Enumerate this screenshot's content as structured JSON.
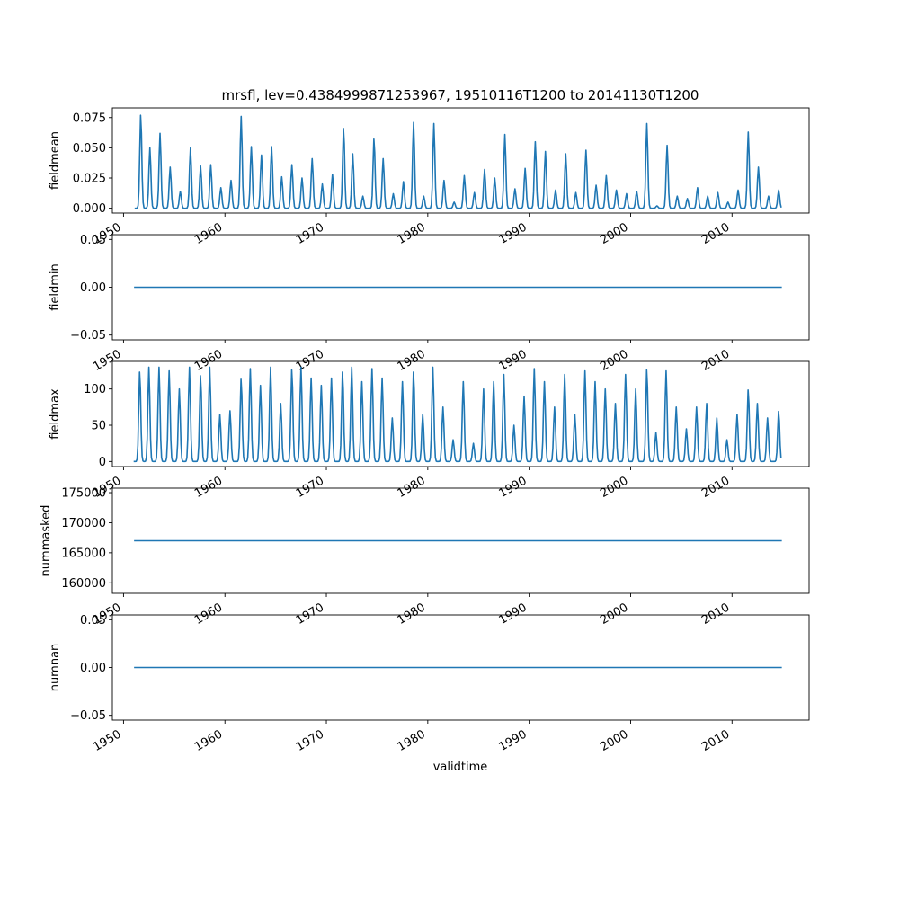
{
  "figure": {
    "title": "mrsfl, lev=0.4384999871253967, 19510116T1200 to 20141130T1200",
    "xlabel": "validtime",
    "x_tick_labels": [
      "1950",
      "1960",
      "1970",
      "1980",
      "1990",
      "2000",
      "2010"
    ],
    "series_color": "#1f77b4"
  },
  "chart_data": [
    {
      "type": "line",
      "ylabel": "fieldmean",
      "xlim": [
        1948.9,
        2017.6
      ],
      "ylim": [
        -0.004,
        0.083
      ],
      "y_tick_labels": [
        "0.000",
        "0.025",
        "0.050",
        "0.075"
      ],
      "x_ticks": [
        1950,
        1960,
        1970,
        1980,
        1990,
        2000,
        2010
      ],
      "seasonal_peaks": [
        [
          1951.7,
          0.078
        ],
        [
          1952.6,
          0.05
        ],
        [
          1953.6,
          0.062
        ],
        [
          1954.6,
          0.034
        ],
        [
          1955.6,
          0.014
        ],
        [
          1956.6,
          0.05
        ],
        [
          1957.6,
          0.035
        ],
        [
          1958.6,
          0.036
        ],
        [
          1959.6,
          0.017
        ],
        [
          1960.6,
          0.023
        ],
        [
          1961.6,
          0.076
        ],
        [
          1962.6,
          0.051
        ],
        [
          1963.6,
          0.044
        ],
        [
          1964.6,
          0.051
        ],
        [
          1965.6,
          0.026
        ],
        [
          1966.6,
          0.036
        ],
        [
          1967.6,
          0.025
        ],
        [
          1968.6,
          0.041
        ],
        [
          1969.6,
          0.02
        ],
        [
          1970.6,
          0.028
        ],
        [
          1971.7,
          0.067
        ],
        [
          1972.6,
          0.045
        ],
        [
          1973.6,
          0.01
        ],
        [
          1974.7,
          0.058
        ],
        [
          1975.6,
          0.041
        ],
        [
          1976.6,
          0.012
        ],
        [
          1977.6,
          0.022
        ],
        [
          1978.6,
          0.071
        ],
        [
          1979.6,
          0.01
        ],
        [
          1980.6,
          0.07
        ],
        [
          1981.6,
          0.023
        ],
        [
          1982.6,
          0.005
        ],
        [
          1983.6,
          0.027
        ],
        [
          1984.6,
          0.013
        ],
        [
          1985.6,
          0.032
        ],
        [
          1986.6,
          0.025
        ],
        [
          1987.6,
          0.061
        ],
        [
          1988.6,
          0.016
        ],
        [
          1989.6,
          0.033
        ],
        [
          1990.6,
          0.055
        ],
        [
          1991.6,
          0.047
        ],
        [
          1992.6,
          0.015
        ],
        [
          1993.6,
          0.045
        ],
        [
          1994.6,
          0.013
        ],
        [
          1995.6,
          0.048
        ],
        [
          1996.6,
          0.019
        ],
        [
          1997.6,
          0.027
        ],
        [
          1998.6,
          0.015
        ],
        [
          1999.6,
          0.012
        ],
        [
          2000.6,
          0.014
        ],
        [
          2001.6,
          0.07
        ],
        [
          2002.6,
          0.002
        ],
        [
          2003.6,
          0.052
        ],
        [
          2004.6,
          0.01
        ],
        [
          2005.6,
          0.008
        ],
        [
          2006.6,
          0.017
        ],
        [
          2007.6,
          0.01
        ],
        [
          2008.6,
          0.013
        ],
        [
          2009.6,
          0.005
        ],
        [
          2010.6,
          0.015
        ],
        [
          2011.6,
          0.063
        ],
        [
          2012.6,
          0.034
        ],
        [
          2013.6,
          0.01
        ],
        [
          2014.6,
          0.015
        ]
      ]
    },
    {
      "type": "line",
      "ylabel": "fieldmin",
      "xlim": [
        1948.9,
        2017.6
      ],
      "ylim": [
        -0.055,
        0.055
      ],
      "y_tick_labels": [
        "−0.05",
        "0.00",
        "0.05"
      ],
      "x_ticks": [
        1950,
        1960,
        1970,
        1980,
        1990,
        2000,
        2010
      ],
      "constant_value": 0.0,
      "x_range": [
        1951.04,
        2014.91
      ]
    },
    {
      "type": "line",
      "ylabel": "fieldmax",
      "xlim": [
        1948.9,
        2017.6
      ],
      "ylim": [
        -7,
        138
      ],
      "y_tick_labels": [
        "0",
        "50",
        "100"
      ],
      "x_ticks": [
        1950,
        1960,
        1970,
        1980,
        1990,
        2000,
        2010
      ],
      "seasonal_peaks": [
        [
          1951.6,
          125
        ],
        [
          1952.5,
          130
        ],
        [
          1953.5,
          130
        ],
        [
          1954.5,
          125
        ],
        [
          1955.5,
          100
        ],
        [
          1956.5,
          130
        ],
        [
          1957.6,
          120
        ],
        [
          1958.5,
          130
        ],
        [
          1959.5,
          65
        ],
        [
          1960.5,
          70
        ],
        [
          1961.6,
          115
        ],
        [
          1962.5,
          128
        ],
        [
          1963.5,
          105
        ],
        [
          1964.5,
          130
        ],
        [
          1965.5,
          80
        ],
        [
          1966.6,
          128
        ],
        [
          1967.5,
          130
        ],
        [
          1968.5,
          115
        ],
        [
          1969.5,
          105
        ],
        [
          1970.5,
          115
        ],
        [
          1971.6,
          125
        ],
        [
          1972.5,
          130
        ],
        [
          1973.5,
          110
        ],
        [
          1974.5,
          128
        ],
        [
          1975.5,
          115
        ],
        [
          1976.5,
          60
        ],
        [
          1977.5,
          110
        ],
        [
          1978.6,
          125
        ],
        [
          1979.5,
          65
        ],
        [
          1980.5,
          130
        ],
        [
          1981.5,
          75
        ],
        [
          1982.5,
          30
        ],
        [
          1983.5,
          110
        ],
        [
          1984.5,
          25
        ],
        [
          1985.5,
          100
        ],
        [
          1986.5,
          110
        ],
        [
          1987.5,
          120
        ],
        [
          1988.5,
          50
        ],
        [
          1989.5,
          90
        ],
        [
          1990.5,
          128
        ],
        [
          1991.5,
          110
        ],
        [
          1992.5,
          75
        ],
        [
          1993.5,
          120
        ],
        [
          1994.5,
          65
        ],
        [
          1995.5,
          125
        ],
        [
          1996.5,
          110
        ],
        [
          1997.5,
          100
        ],
        [
          1998.5,
          80
        ],
        [
          1999.5,
          120
        ],
        [
          2000.5,
          100
        ],
        [
          2001.6,
          128
        ],
        [
          2002.5,
          40
        ],
        [
          2003.5,
          125
        ],
        [
          2004.5,
          75
        ],
        [
          2005.5,
          45
        ],
        [
          2006.5,
          75
        ],
        [
          2007.5,
          80
        ],
        [
          2008.5,
          60
        ],
        [
          2009.5,
          30
        ],
        [
          2010.5,
          65
        ],
        [
          2011.6,
          100
        ],
        [
          2012.5,
          80
        ],
        [
          2013.5,
          60
        ],
        [
          2014.6,
          70
        ]
      ]
    },
    {
      "type": "line",
      "ylabel": "nummasked",
      "xlim": [
        1948.9,
        2017.6
      ],
      "ylim": [
        158250,
        175750
      ],
      "y_tick_labels": [
        "160000",
        "165000",
        "170000",
        "175000"
      ],
      "x_ticks": [
        1950,
        1960,
        1970,
        1980,
        1990,
        2000,
        2010
      ],
      "constant_value": 167000,
      "x_range": [
        1951.04,
        2014.91
      ]
    },
    {
      "type": "line",
      "ylabel": "numnan",
      "xlim": [
        1948.9,
        2017.6
      ],
      "ylim": [
        -0.055,
        0.055
      ],
      "y_tick_labels": [
        "−0.05",
        "0.00",
        "0.05"
      ],
      "x_ticks": [
        1950,
        1960,
        1970,
        1980,
        1990,
        2000,
        2010
      ],
      "constant_value": 0.0,
      "x_range": [
        1951.04,
        2014.91
      ]
    }
  ]
}
